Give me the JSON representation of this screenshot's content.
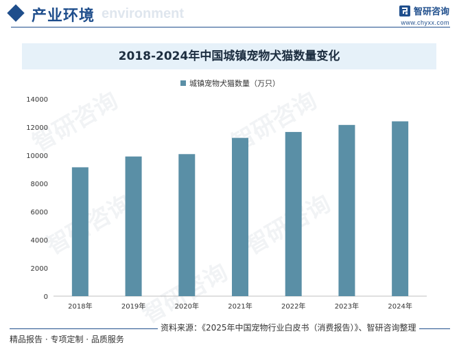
{
  "header": {
    "section_title": "产业环境",
    "section_sub": "environment",
    "brand_name": "智研咨询",
    "brand_url": "www.chyxx.com"
  },
  "watermark_text": "智研咨询",
  "colors": {
    "bar": "#5a8fa6",
    "accent": "#1f4e8c",
    "title_band": "#e6f1f9"
  },
  "chart_data": {
    "type": "bar",
    "title": "2018-2024年中国城镇宠物犬猫数量变化",
    "categories": [
      "2018年",
      "2019年",
      "2020年",
      "2021年",
      "2022年",
      "2023年",
      "2024年"
    ],
    "series": [
      {
        "name": "城镇宠物犬猫数量（万只）",
        "values": [
          9149,
          9915,
          10084,
          11235,
          11655,
          12155,
          12411
        ]
      }
    ],
    "ylim": [
      0,
      14000
    ],
    "yticks": [
      "0",
      "2000",
      "4000",
      "6000",
      "8000",
      "10000",
      "12000",
      "14000"
    ],
    "grid": false,
    "legend": "top-center"
  },
  "footer": {
    "source": "资料来源：《2025年中国宠物行业白皮书（消费报告）》、智研咨询整理",
    "slogan": "精品报告 · 专项定制 · 品质服务"
  }
}
